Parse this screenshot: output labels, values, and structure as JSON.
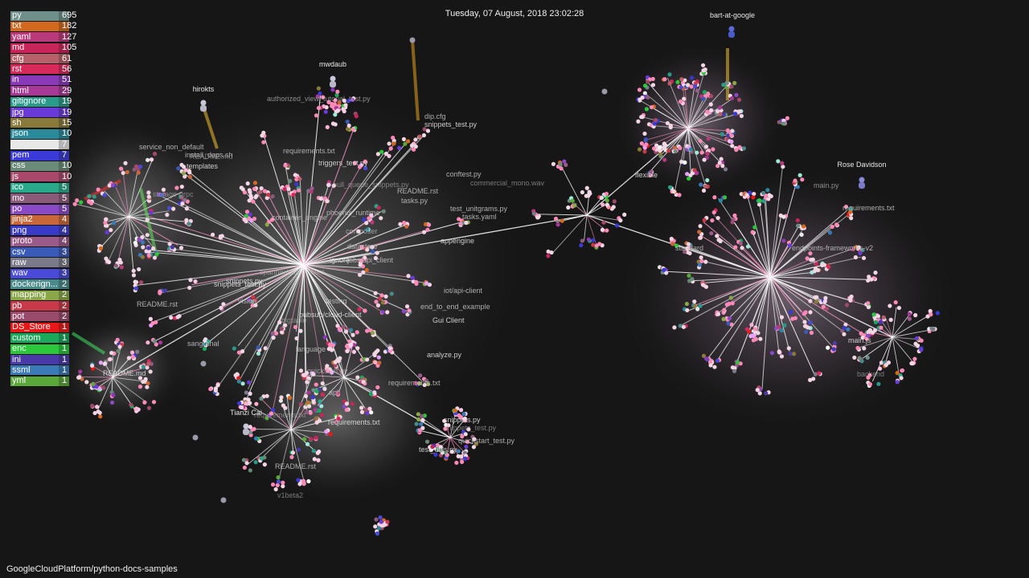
{
  "timestamp": "Tuesday, 07 August, 2018 23:02:28",
  "repo": "GoogleCloudPlatform/python-docs-samples",
  "legend": [
    {
      "ext": "py",
      "count": "695",
      "color": "#6f8f8a"
    },
    {
      "ext": "txt",
      "count": "182",
      "color": "#d2691e"
    },
    {
      "ext": "yaml",
      "count": "127",
      "color": "#b83a7a"
    },
    {
      "ext": "md",
      "count": "105",
      "color": "#c8265a"
    },
    {
      "ext": "cfg",
      "count": "61",
      "color": "#b8606a"
    },
    {
      "ext": "rst",
      "count": "56",
      "color": "#d82a5a"
    },
    {
      "ext": "in",
      "count": "51",
      "color": "#8a3ab8"
    },
    {
      "ext": "html",
      "count": "29",
      "color": "#a83898"
    },
    {
      "ext": "gitignore",
      "count": "19",
      "color": "#2a9a8a"
    },
    {
      "ext": "jpg",
      "count": "19",
      "color": "#6a3ad8"
    },
    {
      "ext": "sh",
      "count": "15",
      "color": "#8a7a3a"
    },
    {
      "ext": "json",
      "count": "10",
      "color": "#2a8a9a"
    },
    {
      "ext": "",
      "count": "7",
      "color": "#e8e8e8"
    },
    {
      "ext": "pem",
      "count": "7",
      "color": "#3a3ad8"
    },
    {
      "ext": "css",
      "count": "10",
      "color": "#6a8a7a"
    },
    {
      "ext": "js",
      "count": "10",
      "color": "#a8486a"
    },
    {
      "ext": "ico",
      "count": "5",
      "color": "#2aa88a"
    },
    {
      "ext": "mo",
      "count": "5",
      "color": "#8a5a7a"
    },
    {
      "ext": "po",
      "count": "5",
      "color": "#8a4ac8"
    },
    {
      "ext": "jinja2",
      "count": "4",
      "color": "#c8683a"
    },
    {
      "ext": "png",
      "count": "4",
      "color": "#3a3ac8"
    },
    {
      "ext": "proto",
      "count": "4",
      "color": "#9a5a8a"
    },
    {
      "ext": "csv",
      "count": "3",
      "color": "#3a5ab8"
    },
    {
      "ext": "raw",
      "count": "3",
      "color": "#7a7a8a"
    },
    {
      "ext": "wav",
      "count": "3",
      "color": "#4a4ad8"
    },
    {
      "ext": "dockerign...",
      "count": "2",
      "color": "#4a8a8a"
    },
    {
      "ext": "mapping",
      "count": "2",
      "color": "#8aa84a"
    },
    {
      "ext": "pb",
      "count": "2",
      "color": "#c83a4a"
    },
    {
      "ext": "pot",
      "count": "2",
      "color": "#9a4a6a"
    },
    {
      "ext": "DS_Store",
      "count": "1",
      "color": "#e81818"
    },
    {
      "ext": "custom",
      "count": "1",
      "color": "#1aa85a"
    },
    {
      "ext": "enc",
      "count": "1",
      "color": "#2ac83a"
    },
    {
      "ext": "ini",
      "count": "1",
      "color": "#4a3aa8"
    },
    {
      "ext": "ssml",
      "count": "1",
      "color": "#3a7ab8"
    },
    {
      "ext": "yml",
      "count": "1",
      "color": "#5aa83a"
    }
  ],
  "users": [
    {
      "name": "mwdaub"
    },
    {
      "name": "hirokts"
    },
    {
      "name": "bart-at-google"
    },
    {
      "name": "Rose Davidson"
    },
    {
      "name": "Tianzi Cai"
    }
  ],
  "labels": [
    "authorized_view_tutorial_test.py",
    "requirements.txt",
    "install_deps.sh",
    "templates",
    "README.md",
    "service_non_default",
    "triggers_test.py",
    "README.rst",
    "pull_queue_snippets.py",
    "snippets_test.py",
    "tasks.py",
    "phoenix_runtime",
    "composer",
    "datastore",
    "container_engine",
    "ignore",
    "spanner/cloud-client",
    "jobs/api_client",
    "snippets.py",
    "vision",
    "bigtable",
    "pubsub/cloud-client",
    "testing",
    "language",
    "quickstart.py",
    "requirements.txt",
    "api",
    "snippets.py",
    "snippets_test.py",
    "quickstart_test.py",
    "test_utils.py",
    "README.rst",
    "v1beta2",
    "requirements.txt",
    "iot/api-client",
    "end_to_end_example",
    "flexible",
    "standard",
    "endpoints-frameworks-v2",
    "main.js",
    "backend",
    "README.rst",
    "analyze.py",
    "sangrahal",
    "storage-grpc",
    "snippets_test.py",
    "tasks.yaml",
    "conftest.py",
    "main.py",
    "requirements.txt",
    "flexible",
    "README.md",
    "requirements.txt",
    "test_unitgrams.py",
    "appengine",
    "dip.cfg",
    "commercial_mono.wav",
    "Gui Client"
  ]
}
